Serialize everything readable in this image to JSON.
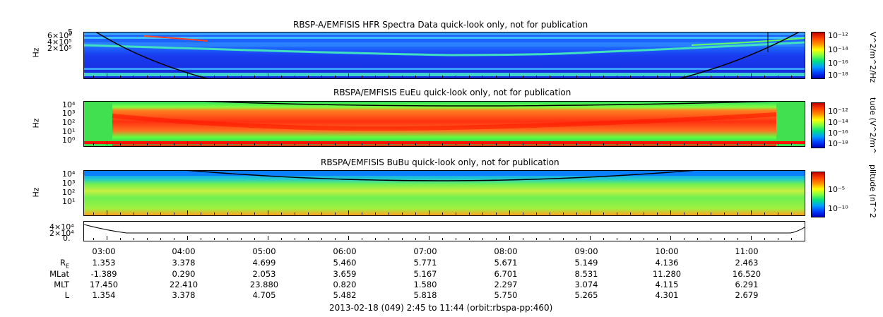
{
  "chart_data": [
    {
      "type": "heatmap",
      "title": "RBSP-A/EMFISIS  HFR Spectra Data quick-look only, not for publication",
      "ylabel": "Hz",
      "yticks": [
        "5",
        "6×10⁵",
        "4×10⁵",
        "2×10⁵"
      ],
      "colorbar_label": "V^2/m^2/Hz",
      "colorbar_ticks": [
        "10⁻¹²",
        "10⁻¹⁴",
        "10⁻¹⁶",
        "10⁻¹⁸"
      ]
    },
    {
      "type": "heatmap",
      "title": "RBSPA/EMFISIS  EuEu quick-look only, not for publication",
      "ylabel": "Hz",
      "yticks": [
        "10⁴",
        "10³",
        "10²",
        "10¹",
        "10⁰"
      ],
      "colorbar_label": "tude (V^2/m^",
      "colorbar_ticks": [
        "10⁻¹²",
        "10⁻¹⁴",
        "10⁻¹⁶",
        "10⁻¹⁸"
      ]
    },
    {
      "type": "heatmap",
      "title": "RBSPA/EMFISIS  BuBu quick-look only, not for publication",
      "ylabel": "Hz",
      "yticks": [
        "10⁴",
        "10³",
        "10²",
        "10¹"
      ],
      "colorbar_label": "plitude (nT^2",
      "colorbar_ticks": [
        "10⁻⁵",
        "10⁻¹⁰"
      ]
    },
    {
      "type": "line",
      "yticks": [
        "4×10⁴",
        "2×10⁴",
        "0."
      ]
    }
  ],
  "ephemeris": {
    "times": [
      "03:00",
      "04:00",
      "05:00",
      "06:00",
      "07:00",
      "08:00",
      "09:00",
      "10:00",
      "11:00"
    ],
    "rows": [
      {
        "name": "R",
        "sub": "E",
        "values": [
          "1.353",
          "3.378",
          "4.699",
          "5.460",
          "5.771",
          "5.671",
          "5.149",
          "4.136",
          "2.463"
        ]
      },
      {
        "name": "MLat",
        "sub": "",
        "values": [
          "-1.389",
          "0.290",
          "2.053",
          "3.659",
          "5.167",
          "6.701",
          "8.531",
          "11.280",
          "16.520"
        ]
      },
      {
        "name": "MLT",
        "sub": "",
        "values": [
          "17.450",
          "22.410",
          "23.880",
          "0.820",
          "1.580",
          "2.297",
          "3.074",
          "4.115",
          "6.291"
        ]
      },
      {
        "name": "L",
        "sub": "",
        "values": [
          "1.354",
          "3.378",
          "4.705",
          "5.482",
          "5.818",
          "5.750",
          "5.265",
          "4.301",
          "2.679"
        ]
      }
    ]
  },
  "footer": "2013-02-18 (049) 2:45 to 11:44 (orbit:rbspa-pp:460)"
}
